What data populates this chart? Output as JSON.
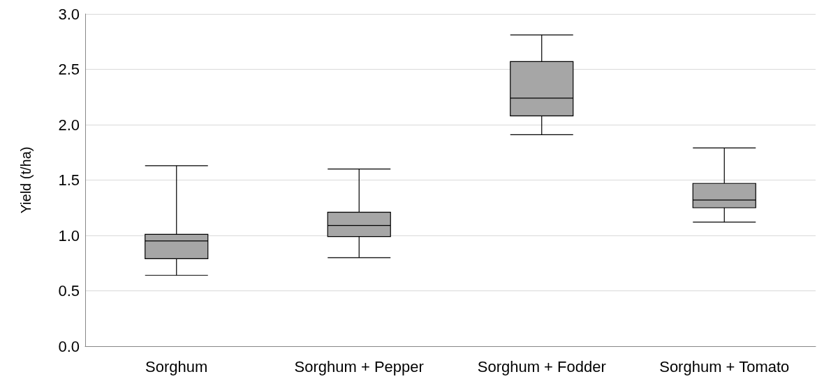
{
  "chart_data": {
    "type": "box",
    "ylabel": "Yield (t/ha)",
    "categories": [
      "Sorghum",
      "Sorghum + Pepper",
      "Sorghum + Fodder",
      "Sorghum + Tomato"
    ],
    "boxes": [
      {
        "low": 0.64,
        "q1": 0.79,
        "median": 0.95,
        "q3": 1.01,
        "high": 1.63
      },
      {
        "low": 0.8,
        "q1": 0.99,
        "median": 1.09,
        "q3": 1.21,
        "high": 1.6
      },
      {
        "low": 1.91,
        "q1": 2.08,
        "median": 2.24,
        "q3": 2.57,
        "high": 2.81
      },
      {
        "low": 1.12,
        "q1": 1.25,
        "median": 1.32,
        "q3": 1.47,
        "high": 1.79
      }
    ],
    "color": "#a6a6a6",
    "ylim": [
      0,
      3
    ],
    "yticks": [
      {
        "value": 0,
        "label": "0.0"
      },
      {
        "value": 0.5,
        "label": "0.5"
      },
      {
        "value": 1,
        "label": "1.0"
      },
      {
        "value": 1.5,
        "label": "1.5"
      },
      {
        "value": 2,
        "label": "2.0"
      },
      {
        "value": 2.5,
        "label": "2.5"
      },
      {
        "value": 3,
        "label": "3.0"
      }
    ],
    "grid": "y"
  }
}
